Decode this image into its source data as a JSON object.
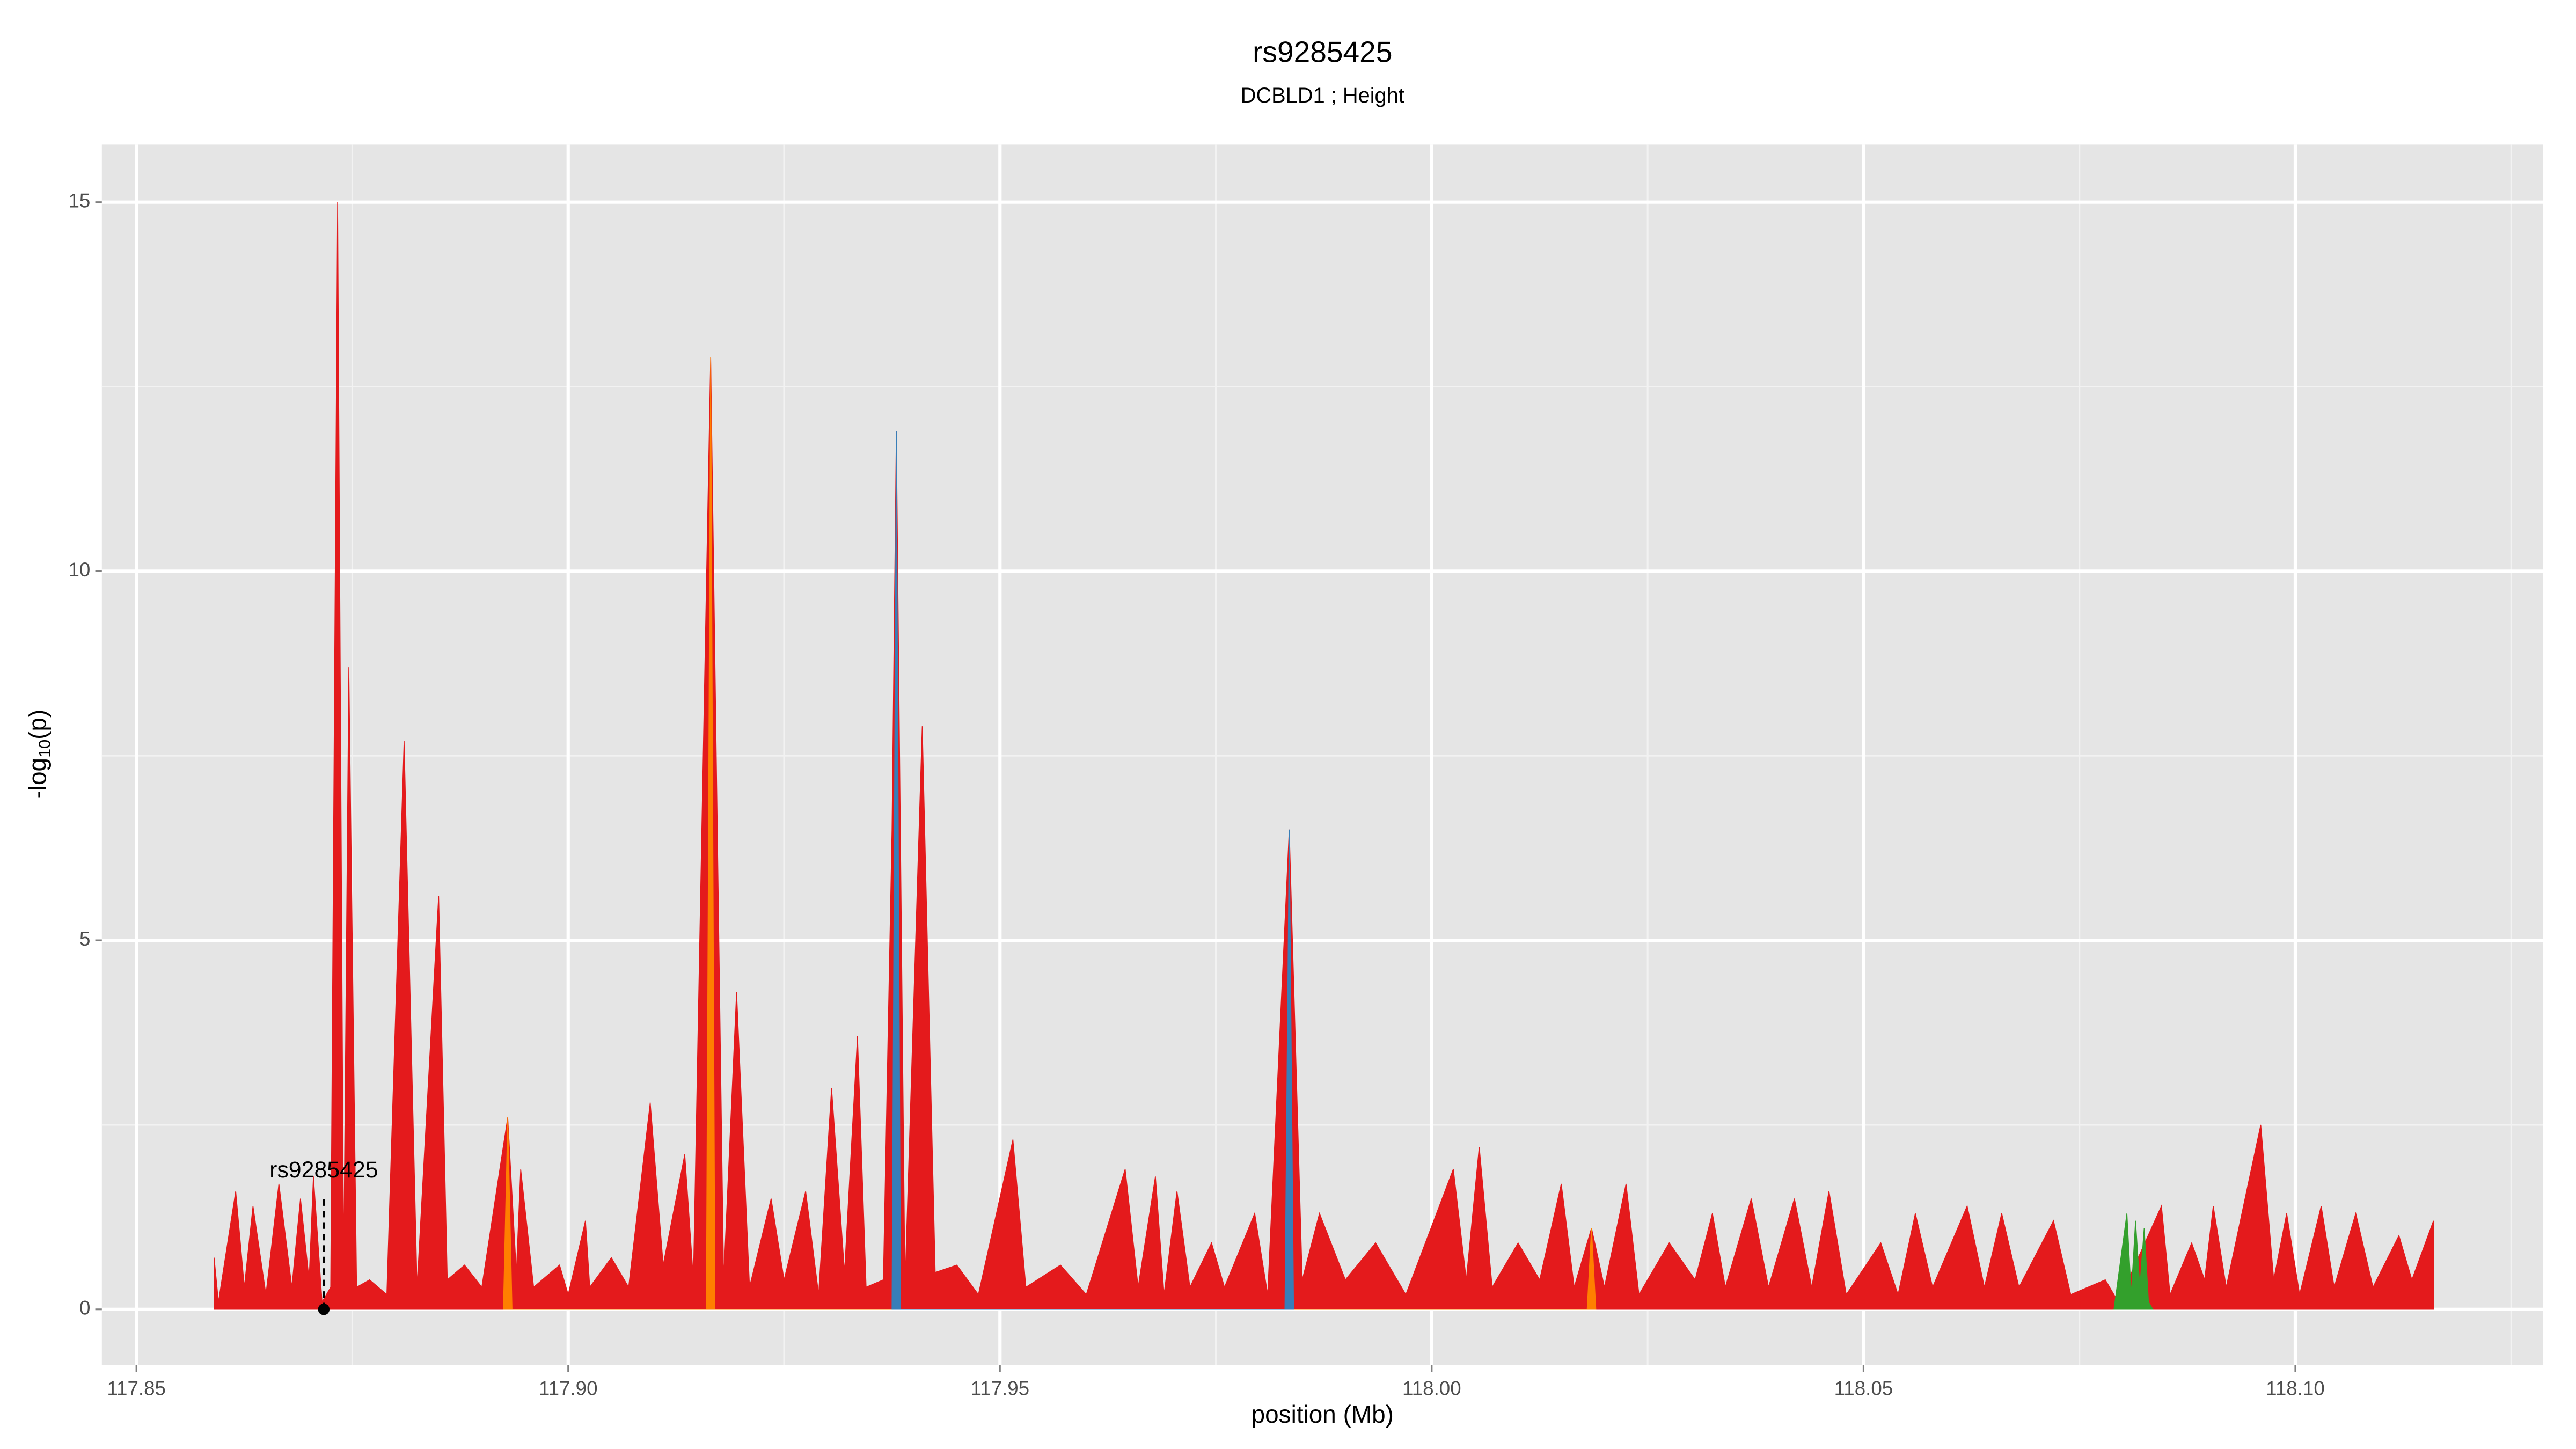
{
  "chart_data": {
    "type": "area",
    "title": "rs9285425",
    "subtitle": "DCBLD1 ; Height",
    "xlabel": "position (Mb)",
    "ylabel": [
      "-log",
      "10",
      "(p)"
    ],
    "xlim": [
      117.846,
      118.1287
    ],
    "ylim": [
      -0.757,
      15.78
    ],
    "xticks": [
      {
        "value": 117.85,
        "label": "117.85"
      },
      {
        "value": 117.9,
        "label": "117.90"
      },
      {
        "value": 117.95,
        "label": "117.95"
      },
      {
        "value": 118.0,
        "label": "118.00"
      },
      {
        "value": 118.05,
        "label": "118.05"
      },
      {
        "value": 118.1,
        "label": "118.10"
      }
    ],
    "yticks": [
      0,
      5,
      10,
      15
    ],
    "grid": true,
    "annotation": {
      "label": "rs9285425",
      "x": 117.8717,
      "y": 0
    },
    "series": [
      {
        "color": "#e41a1c",
        "x": [
          117.859,
          117.8595,
          117.8615,
          117.8625,
          117.8635,
          117.865,
          117.8665,
          117.868,
          117.869,
          117.87,
          117.8705,
          117.8715,
          117.8725,
          117.8733,
          117.874,
          117.8746,
          117.8755,
          117.877,
          117.879,
          117.881,
          117.8825,
          117.885,
          117.886,
          117.888,
          117.89,
          117.893,
          117.894,
          117.8945,
          117.896,
          117.899,
          117.9,
          117.902,
          117.9025,
          117.905,
          117.907,
          117.9095,
          117.911,
          117.9135,
          117.9145,
          117.9165,
          117.918,
          117.9195,
          117.921,
          117.9235,
          117.925,
          117.9275,
          117.929,
          117.9305,
          117.932,
          117.9335,
          117.9345,
          117.9365,
          117.9375,
          117.938,
          117.939,
          117.941,
          117.9425,
          117.945,
          117.9475,
          117.9515,
          117.953,
          117.957,
          117.96,
          117.9645,
          117.966,
          117.968,
          117.969,
          117.9705,
          117.972,
          117.9745,
          117.976,
          117.9795,
          117.981,
          117.9835,
          117.985,
          117.987,
          117.99,
          117.9935,
          117.997,
          118.0025,
          118.004,
          118.0055,
          118.007,
          118.01,
          118.0125,
          118.015,
          118.0165,
          118.0185,
          118.02,
          118.0225,
          118.024,
          118.0275,
          118.0305,
          118.0325,
          118.034,
          118.037,
          118.039,
          118.042,
          118.044,
          118.046,
          118.048,
          118.052,
          118.054,
          118.056,
          118.058,
          118.062,
          118.064,
          118.066,
          118.068,
          118.072,
          118.074,
          118.078,
          118.0795,
          118.0845,
          118.0855,
          118.088,
          118.0895,
          118.0905,
          118.092,
          118.096,
          118.0975,
          118.099,
          118.1005,
          118.103,
          118.1045,
          118.107,
          118.109,
          118.112,
          118.1135,
          118.116
        ],
        "values": [
          0.7,
          0.1,
          1.6,
          0.3,
          1.4,
          0.2,
          1.7,
          0.3,
          1.5,
          0.4,
          1.8,
          0.1,
          0.3,
          15.0,
          0.5,
          8.7,
          0.3,
          0.4,
          0.2,
          7.7,
          0.3,
          5.6,
          0.4,
          0.6,
          0.3,
          2.6,
          0.5,
          1.9,
          0.3,
          0.6,
          0.2,
          1.2,
          0.3,
          0.7,
          0.3,
          2.8,
          0.6,
          2.1,
          0.4,
          12.9,
          0.4,
          4.3,
          0.3,
          1.5,
          0.4,
          1.6,
          0.2,
          3.0,
          0.5,
          3.7,
          0.3,
          0.4,
          6.5,
          11.9,
          0.3,
          7.9,
          0.5,
          0.6,
          0.2,
          2.3,
          0.3,
          0.6,
          0.2,
          1.9,
          0.3,
          1.8,
          0.2,
          1.6,
          0.3,
          0.9,
          0.3,
          1.3,
          0.2,
          6.5,
          0.4,
          1.3,
          0.4,
          0.9,
          0.2,
          1.9,
          0.4,
          2.2,
          0.3,
          0.9,
          0.4,
          1.7,
          0.3,
          1.1,
          0.3,
          1.7,
          0.2,
          0.9,
          0.4,
          1.3,
          0.3,
          1.5,
          0.3,
          1.5,
          0.3,
          1.6,
          0.2,
          0.9,
          0.2,
          1.3,
          0.3,
          1.4,
          0.3,
          1.3,
          0.3,
          1.2,
          0.2,
          0.4,
          0.1,
          1.4,
          0.2,
          0.9,
          0.4,
          1.4,
          0.3,
          2.5,
          0.4,
          1.3,
          0.2,
          1.4,
          0.3,
          1.3,
          0.3,
          1.0,
          0.4,
          1.2
        ]
      },
      {
        "color": "#ff7f00",
        "x": [
          117.8925,
          117.893,
          117.8935,
          117.916,
          117.9165,
          117.917,
          118.018,
          118.0185,
          118.019
        ],
        "values": [
          0,
          2.6,
          0,
          0,
          12.9,
          0,
          0,
          1.1,
          0
        ]
      },
      {
        "color": "#377eb8",
        "x": [
          117.9375,
          117.938,
          117.9385,
          117.983,
          117.9835,
          117.984
        ],
        "values": [
          0,
          11.9,
          0,
          0,
          6.5,
          0
        ]
      },
      {
        "color": "#33a02c",
        "x": [
          118.079,
          118.0805,
          118.081,
          118.0815,
          118.082,
          118.0825,
          118.083,
          118.0835
        ],
        "values": [
          0,
          1.3,
          0.2,
          1.2,
          0.3,
          1.1,
          0.1,
          0
        ]
      }
    ]
  }
}
